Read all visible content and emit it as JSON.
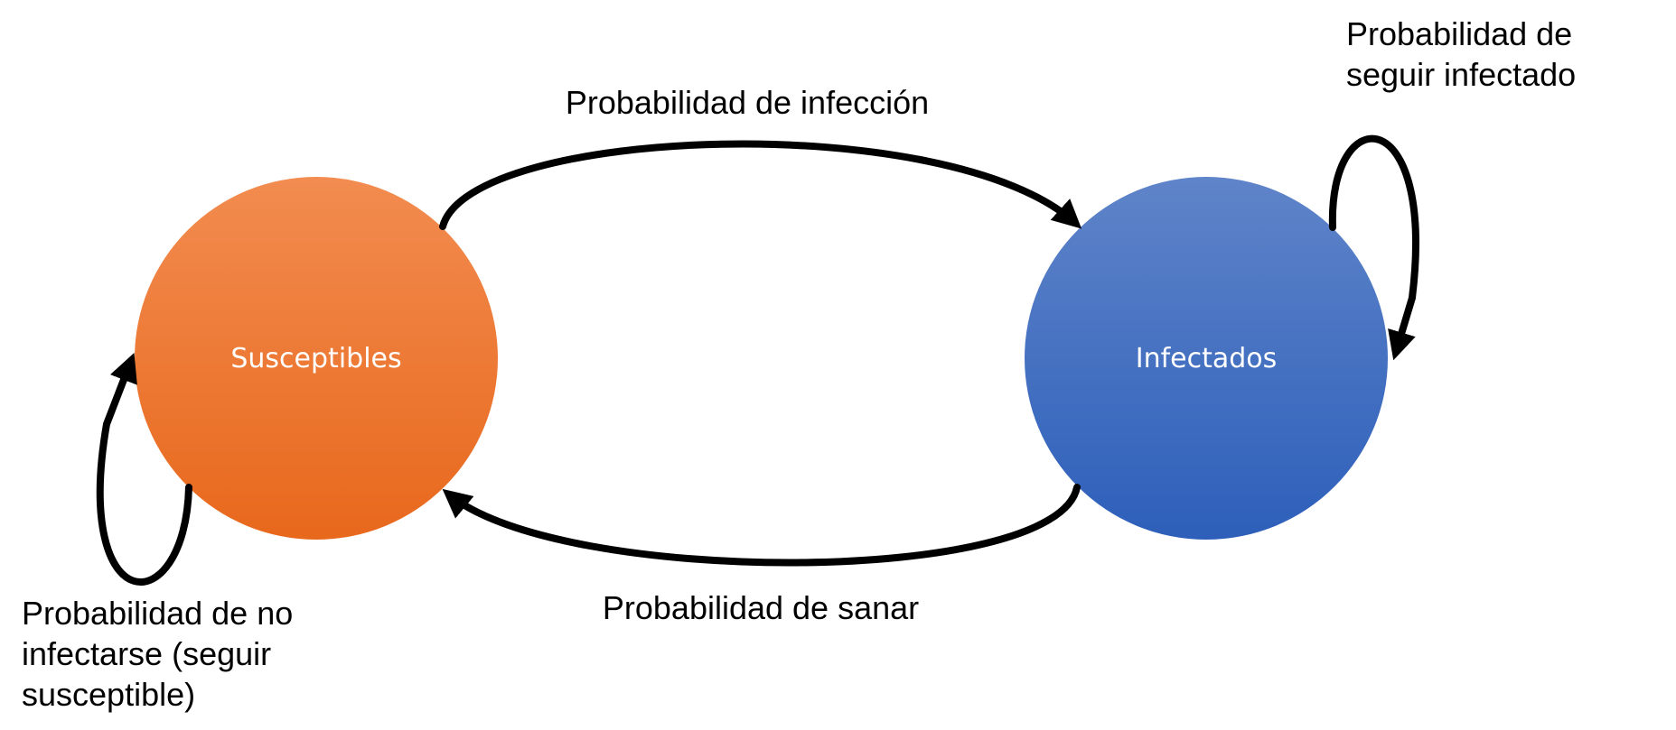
{
  "nodes": {
    "susceptibles": {
      "label": "Susceptibles",
      "color_top": "#f28c50",
      "color_bottom": "#e8681c"
    },
    "infectados": {
      "label": "Infectados",
      "color_top": "#5f84c9",
      "color_bottom": "#2d5fba"
    }
  },
  "edges": {
    "infection": {
      "label": "Probabilidad de infección"
    },
    "recovery": {
      "label": "Probabilidad de sanar"
    },
    "stay_infected": {
      "lines": [
        "Probabilidad de",
        "seguir infectado"
      ]
    },
    "stay_susceptible": {
      "lines": [
        "Probabilidad de no",
        "infectarse (seguir",
        "susceptible)"
      ]
    }
  }
}
